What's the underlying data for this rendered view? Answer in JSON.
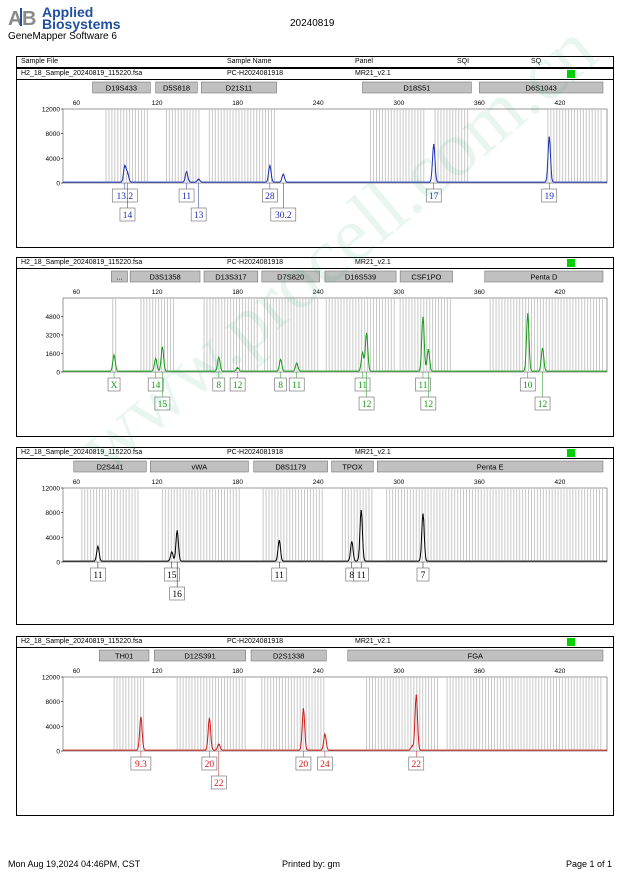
{
  "header": {
    "logo_line1": "Applied",
    "logo_line2": "Biosystems",
    "software": "GeneMapper Software 6",
    "date": "20240819"
  },
  "table_header": {
    "sample_file": "Sample File",
    "sample_name": "Sample Name",
    "panel": "Panel",
    "sqi": "SQI",
    "sq": "SQ"
  },
  "footer": {
    "printed_at": "Mon Aug 19,2024 04:46PM, CST",
    "printed_by": "Printed by: gm",
    "page": "Page 1 of 1"
  },
  "watermark": "www.procell.com.cn",
  "colors": {
    "blue": "#1a2fb0",
    "green": "#159b15",
    "black": "#000000",
    "red": "#d01818",
    "status": "#00d000"
  },
  "chart_data": [
    {
      "type": "line",
      "color": "blue",
      "sample_file": "H2_18_Sample_20240819_115220.fsa",
      "sample_name": "PC-H2024081918",
      "panel": "MR21_v2.1",
      "xlim": [
        50,
        455
      ],
      "ylim": [
        0,
        12000
      ],
      "x_ticks": [
        60,
        120,
        180,
        240,
        300,
        360,
        420
      ],
      "y_ticks": [
        0,
        4000,
        8000,
        12000
      ],
      "markers": [
        {
          "label": "D19S433",
          "range": [
            72,
            115
          ]
        },
        {
          "label": "D5S818",
          "range": [
            119,
            150
          ]
        },
        {
          "label": "D21S11",
          "range": [
            153,
            209
          ]
        },
        {
          "label": "D18S51",
          "range": [
            273,
            354
          ]
        },
        {
          "label": "D6S1043",
          "range": [
            360,
            452
          ]
        }
      ],
      "peaks": [
        {
          "x": 96,
          "h": 2600
        },
        {
          "x": 98,
          "h": 1500
        },
        {
          "x": 142,
          "h": 1700
        },
        {
          "x": 151,
          "h": 500
        },
        {
          "x": 204,
          "h": 2700
        },
        {
          "x": 214,
          "h": 1300
        },
        {
          "x": 326,
          "h": 6200
        },
        {
          "x": 412,
          "h": 7400
        }
      ],
      "labels": [
        {
          "text": "13.2",
          "x": 96,
          "row": 1
        },
        {
          "text": "14",
          "x": 98,
          "row": 2
        },
        {
          "text": "11",
          "x": 142,
          "row": 1
        },
        {
          "text": "13",
          "x": 151,
          "row": 2
        },
        {
          "text": "28",
          "x": 204,
          "row": 1
        },
        {
          "text": "30.2",
          "x": 214,
          "row": 2
        },
        {
          "text": "17",
          "x": 326,
          "row": 1
        },
        {
          "text": "19",
          "x": 412,
          "row": 1
        }
      ],
      "bins": [
        [
          82,
          115
        ],
        [
          127,
          152
        ],
        [
          159,
          208
        ],
        [
          279,
          320
        ],
        [
          327,
          353
        ],
        [
          411,
          452
        ]
      ]
    },
    {
      "type": "line",
      "color": "green",
      "sample_file": "H2_18_Sample_20240819_115220.fsa",
      "sample_name": "PC-H2024081918",
      "panel": "MR21_v2.1",
      "xlim": [
        50,
        455
      ],
      "ylim": [
        0,
        6400
      ],
      "x_ticks": [
        60,
        120,
        180,
        240,
        300,
        360,
        420
      ],
      "y_ticks": [
        0,
        1600,
        3200,
        4800
      ],
      "markers": [
        {
          "label": "...",
          "range": [
            86,
            98
          ]
        },
        {
          "label": "D3S1358",
          "range": [
            100,
            152
          ]
        },
        {
          "label": "D13S317",
          "range": [
            155,
            195
          ]
        },
        {
          "label": "D7S820",
          "range": [
            198,
            241
          ]
        },
        {
          "label": "D16S539",
          "range": [
            245,
            298
          ]
        },
        {
          "label": "CSF1PO",
          "range": [
            301,
            340
          ]
        },
        {
          "label": "Penta D",
          "range": [
            364,
            452
          ]
        }
      ],
      "peaks": [
        {
          "x": 88,
          "h": 1400
        },
        {
          "x": 119,
          "h": 1100
        },
        {
          "x": 124,
          "h": 2100
        },
        {
          "x": 166,
          "h": 1200
        },
        {
          "x": 180,
          "h": 300
        },
        {
          "x": 212,
          "h": 1000
        },
        {
          "x": 224,
          "h": 700
        },
        {
          "x": 273,
          "h": 1600
        },
        {
          "x": 276,
          "h": 3300
        },
        {
          "x": 318,
          "h": 4700
        },
        {
          "x": 322,
          "h": 1900
        },
        {
          "x": 396,
          "h": 5000
        },
        {
          "x": 407,
          "h": 2000
        }
      ],
      "labels": [
        {
          "text": "X",
          "x": 88,
          "row": 1
        },
        {
          "text": "14",
          "x": 119,
          "row": 1
        },
        {
          "text": "15",
          "x": 124,
          "row": 2
        },
        {
          "text": "8",
          "x": 166,
          "row": 1
        },
        {
          "text": "12",
          "x": 180,
          "row": 1
        },
        {
          "text": "8",
          "x": 212,
          "row": 1
        },
        {
          "text": "11",
          "x": 224,
          "row": 1
        },
        {
          "text": "11",
          "x": 273,
          "row": 1
        },
        {
          "text": "12",
          "x": 276,
          "row": 2
        },
        {
          "text": "11",
          "x": 318,
          "row": 1
        },
        {
          "text": "12",
          "x": 322,
          "row": 2
        },
        {
          "text": "10",
          "x": 396,
          "row": 1
        },
        {
          "text": "12",
          "x": 407,
          "row": 2
        }
      ],
      "bins": [
        [
          87,
          90
        ],
        [
          108,
          134
        ],
        [
          155,
          195
        ],
        [
          200,
          241
        ],
        [
          246,
          298
        ],
        [
          301,
          340
        ],
        [
          368,
          452
        ]
      ]
    },
    {
      "type": "line",
      "color": "black",
      "sample_file": "H2_18_Sample_20240819_115220.fsa",
      "sample_name": "PC-H2024081918",
      "panel": "MR21_v2.1",
      "xlim": [
        50,
        455
      ],
      "ylim": [
        0,
        12000
      ],
      "x_ticks": [
        60,
        120,
        180,
        240,
        300,
        360,
        420
      ],
      "y_ticks": [
        0,
        4000,
        8000,
        12000
      ],
      "markers": [
        {
          "label": "D2S441",
          "range": [
            58,
            112
          ]
        },
        {
          "label": "vWA",
          "range": [
            115,
            188
          ]
        },
        {
          "label": "D8S1179",
          "range": [
            192,
            247
          ]
        },
        {
          "label": "TPOX",
          "range": [
            250,
            281
          ]
        },
        {
          "label": "Penta E",
          "range": [
            284,
            452
          ]
        }
      ],
      "peaks": [
        {
          "x": 76,
          "h": 2400
        },
        {
          "x": 131,
          "h": 1500
        },
        {
          "x": 135,
          "h": 5000
        },
        {
          "x": 211,
          "h": 3400
        },
        {
          "x": 265,
          "h": 3200
        },
        {
          "x": 272,
          "h": 8300
        },
        {
          "x": 318,
          "h": 7700
        }
      ],
      "labels": [
        {
          "text": "11",
          "x": 76,
          "row": 1
        },
        {
          "text": "15",
          "x": 131,
          "row": 1
        },
        {
          "text": "16",
          "x": 135,
          "row": 2
        },
        {
          "text": "11",
          "x": 211,
          "row": 1
        },
        {
          "text": "8",
          "x": 265,
          "row": 1
        },
        {
          "text": "11",
          "x": 272,
          "row": 1
        },
        {
          "text": "7",
          "x": 318,
          "row": 1
        }
      ],
      "bins": [
        [
          64,
          108
        ],
        [
          124,
          182
        ],
        [
          199,
          244
        ],
        [
          258,
          280
        ],
        [
          291,
          452
        ]
      ]
    },
    {
      "type": "line",
      "color": "red",
      "sample_file": "H2_18_Sample_20240819_115220.fsa",
      "sample_name": "PC-H2024081918",
      "panel": "MR21_v2.1",
      "xlim": [
        50,
        455
      ],
      "ylim": [
        0,
        12000
      ],
      "x_ticks": [
        60,
        120,
        180,
        240,
        300,
        360,
        420
      ],
      "y_ticks": [
        0,
        4000,
        8000,
        12000
      ],
      "markers": [
        {
          "label": "TH01",
          "range": [
            77,
            114
          ]
        },
        {
          "label": "D12S391",
          "range": [
            118,
            186
          ]
        },
        {
          "label": "D2S1338",
          "range": [
            190,
            246
          ]
        },
        {
          "label": "FGA",
          "range": [
            262,
            452
          ]
        }
      ],
      "peaks": [
        {
          "x": 108,
          "h": 5400
        },
        {
          "x": 159,
          "h": 5200
        },
        {
          "x": 166,
          "h": 1000
        },
        {
          "x": 229,
          "h": 6800
        },
        {
          "x": 245,
          "h": 2600
        },
        {
          "x": 313,
          "h": 9000
        },
        {
          "x": 310,
          "h": 700
        }
      ],
      "labels": [
        {
          "text": "9.3",
          "x": 108,
          "row": 1
        },
        {
          "text": "20",
          "x": 159,
          "row": 1
        },
        {
          "text": "22",
          "x": 166,
          "row": 2
        },
        {
          "text": "20",
          "x": 229,
          "row": 1
        },
        {
          "text": "24",
          "x": 245,
          "row": 1
        },
        {
          "text": "22",
          "x": 313,
          "row": 1
        }
      ],
      "bins": [
        [
          88,
          112
        ],
        [
          135,
          186
        ],
        [
          198,
          246
        ],
        [
          276,
          330
        ],
        [
          336,
          452
        ]
      ]
    }
  ]
}
